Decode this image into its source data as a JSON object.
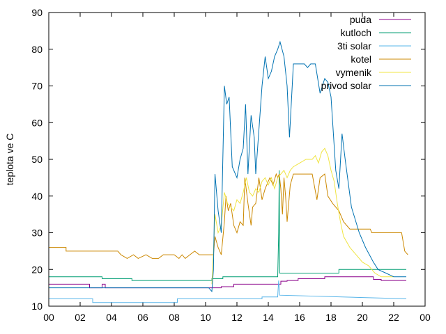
{
  "chart_data": {
    "type": "line",
    "ylabel": "teplota ve C",
    "xlabel": "",
    "xlim": [
      0,
      24
    ],
    "ylim": [
      10,
      90
    ],
    "x_ticks": [
      "00",
      "02",
      "04",
      "06",
      "08",
      "10",
      "12",
      "14",
      "16",
      "18",
      "20",
      "22",
      "00"
    ],
    "y_ticks": [
      "10",
      "20",
      "30",
      "40",
      "50",
      "60",
      "70",
      "80",
      "90"
    ],
    "legend_position": "top-right",
    "series": [
      {
        "name": "puda",
        "color": "#8b008b",
        "points": [
          [
            0,
            16
          ],
          [
            2.6,
            16
          ],
          [
            2.6,
            15
          ],
          [
            3.4,
            15
          ],
          [
            3.4,
            16
          ],
          [
            3.6,
            16
          ],
          [
            3.6,
            15
          ],
          [
            11,
            15
          ],
          [
            11,
            15.3
          ],
          [
            11.8,
            15.3
          ],
          [
            11.8,
            16
          ],
          [
            14.8,
            16
          ],
          [
            14.8,
            16.8
          ],
          [
            15.2,
            16.8
          ],
          [
            15.2,
            17
          ],
          [
            15.9,
            17
          ],
          [
            15.9,
            17.5
          ],
          [
            17.6,
            17.5
          ],
          [
            17.6,
            18
          ],
          [
            20.7,
            18
          ],
          [
            20.7,
            17.3
          ],
          [
            21.2,
            17.3
          ],
          [
            21.2,
            17
          ],
          [
            22.8,
            17
          ]
        ]
      },
      {
        "name": "kutloch",
        "color": "#009e73",
        "points": [
          [
            0,
            18
          ],
          [
            3.4,
            18
          ],
          [
            3.4,
            17.5
          ],
          [
            5.3,
            17.5
          ],
          [
            5.3,
            17
          ],
          [
            10.4,
            17
          ],
          [
            10.4,
            17.5
          ],
          [
            11.1,
            17.5
          ],
          [
            11.1,
            18
          ],
          [
            14.6,
            18
          ],
          [
            14.66,
            30
          ],
          [
            14.7,
            47
          ],
          [
            14.72,
            19
          ],
          [
            18.5,
            19
          ],
          [
            18.5,
            20
          ],
          [
            22.8,
            20
          ]
        ]
      },
      {
        "name": "3ti solar",
        "color": "#56b4e9",
        "points": [
          [
            0,
            12
          ],
          [
            2.8,
            12
          ],
          [
            2.8,
            11
          ],
          [
            8.2,
            11
          ],
          [
            8.2,
            12
          ],
          [
            13.6,
            12
          ],
          [
            13.6,
            12.5
          ],
          [
            14.6,
            12.5
          ],
          [
            14.62,
            14
          ],
          [
            14.66,
            17
          ],
          [
            14.72,
            13
          ],
          [
            22.8,
            12
          ]
        ]
      },
      {
        "name": "kotel",
        "color": "#cc8800",
        "points": [
          [
            0,
            26
          ],
          [
            1.1,
            26
          ],
          [
            1.1,
            25
          ],
          [
            4.4,
            25
          ],
          [
            4.6,
            24
          ],
          [
            5.0,
            23
          ],
          [
            5.4,
            24
          ],
          [
            5.7,
            23
          ],
          [
            6.2,
            24
          ],
          [
            6.6,
            23
          ],
          [
            7.0,
            23
          ],
          [
            7.3,
            24
          ],
          [
            8.0,
            24
          ],
          [
            8.3,
            23
          ],
          [
            8.5,
            24
          ],
          [
            8.7,
            23
          ],
          [
            9.0,
            24
          ],
          [
            9.3,
            25
          ],
          [
            9.6,
            24
          ],
          [
            10.5,
            24
          ],
          [
            10.6,
            29
          ],
          [
            10.8,
            26
          ],
          [
            11.0,
            24
          ],
          [
            11.2,
            33
          ],
          [
            11.3,
            40
          ],
          [
            11.45,
            36
          ],
          [
            11.6,
            38
          ],
          [
            11.8,
            32
          ],
          [
            12.0,
            30
          ],
          [
            12.2,
            33
          ],
          [
            12.4,
            32
          ],
          [
            12.5,
            45
          ],
          [
            12.7,
            38
          ],
          [
            12.9,
            32
          ],
          [
            13.0,
            37
          ],
          [
            13.2,
            38
          ],
          [
            13.4,
            45
          ],
          [
            13.6,
            39
          ],
          [
            13.8,
            42
          ],
          [
            14.0,
            44
          ],
          [
            14.1,
            45
          ],
          [
            14.3,
            43
          ],
          [
            14.5,
            46
          ],
          [
            14.6,
            45
          ],
          [
            14.7,
            46
          ],
          [
            14.8,
            42
          ],
          [
            14.9,
            35
          ],
          [
            15.0,
            45
          ],
          [
            15.1,
            40
          ],
          [
            15.2,
            33
          ],
          [
            15.4,
            43
          ],
          [
            15.6,
            46
          ],
          [
            16.8,
            46
          ],
          [
            17.1,
            39
          ],
          [
            17.3,
            45
          ],
          [
            17.6,
            46
          ],
          [
            17.8,
            40
          ],
          [
            18.1,
            38
          ],
          [
            18.5,
            36
          ],
          [
            18.8,
            33
          ],
          [
            19.2,
            31
          ],
          [
            20.0,
            31
          ],
          [
            20.5,
            31
          ],
          [
            20.6,
            30
          ],
          [
            22.5,
            30
          ],
          [
            22.7,
            25
          ],
          [
            22.9,
            24
          ]
        ]
      },
      {
        "name": "vymenik",
        "color": "#f0e442",
        "points": [
          [
            10.4,
            16
          ],
          [
            10.5,
            25
          ],
          [
            10.6,
            35
          ],
          [
            10.8,
            30
          ],
          [
            11.0,
            32
          ],
          [
            11.2,
            41
          ],
          [
            11.4,
            38
          ],
          [
            11.6,
            37
          ],
          [
            11.8,
            36
          ],
          [
            12.0,
            39
          ],
          [
            12.2,
            38
          ],
          [
            12.4,
            41
          ],
          [
            12.6,
            45
          ],
          [
            12.8,
            41
          ],
          [
            13.0,
            40
          ],
          [
            13.2,
            42
          ],
          [
            13.4,
            41
          ],
          [
            13.6,
            44
          ],
          [
            13.8,
            45
          ],
          [
            14.0,
            43
          ],
          [
            14.2,
            45
          ],
          [
            14.4,
            42
          ],
          [
            14.6,
            45
          ],
          [
            14.8,
            46
          ],
          [
            15.0,
            47
          ],
          [
            15.2,
            45
          ],
          [
            15.4,
            47
          ],
          [
            15.6,
            48
          ],
          [
            16.0,
            49
          ],
          [
            16.4,
            50
          ],
          [
            16.8,
            50
          ],
          [
            17.0,
            51
          ],
          [
            17.2,
            49
          ],
          [
            17.4,
            52
          ],
          [
            17.6,
            53
          ],
          [
            17.8,
            51
          ],
          [
            18.0,
            47
          ],
          [
            18.2,
            44
          ],
          [
            18.4,
            38
          ],
          [
            18.6,
            33
          ],
          [
            18.8,
            29
          ],
          [
            19.2,
            26
          ],
          [
            19.6,
            24
          ],
          [
            20.0,
            22
          ],
          [
            20.4,
            21
          ],
          [
            20.8,
            19
          ],
          [
            21.2,
            18
          ],
          [
            22.0,
            18
          ]
        ]
      },
      {
        "name": "privod solar",
        "color": "#0072b2",
        "points": [
          [
            0,
            15
          ],
          [
            10.2,
            15
          ],
          [
            10.4,
            14
          ],
          [
            10.5,
            20
          ],
          [
            10.6,
            46
          ],
          [
            10.8,
            36
          ],
          [
            11.0,
            30
          ],
          [
            11.2,
            70
          ],
          [
            11.35,
            65
          ],
          [
            11.5,
            67
          ],
          [
            11.7,
            48
          ],
          [
            12.0,
            45
          ],
          [
            12.2,
            50
          ],
          [
            12.4,
            53
          ],
          [
            12.55,
            65
          ],
          [
            12.7,
            46
          ],
          [
            12.9,
            62
          ],
          [
            13.1,
            56
          ],
          [
            13.2,
            46
          ],
          [
            13.4,
            58
          ],
          [
            13.6,
            70
          ],
          [
            13.8,
            78
          ],
          [
            14.0,
            72
          ],
          [
            14.2,
            74
          ],
          [
            14.4,
            78
          ],
          [
            14.6,
            80
          ],
          [
            14.75,
            82
          ],
          [
            15.0,
            78
          ],
          [
            15.2,
            70
          ],
          [
            15.35,
            56
          ],
          [
            15.6,
            76
          ],
          [
            15.8,
            76
          ],
          [
            16.3,
            76
          ],
          [
            16.5,
            75
          ],
          [
            16.7,
            76
          ],
          [
            17.0,
            76
          ],
          [
            17.3,
            68
          ],
          [
            17.6,
            72
          ],
          [
            17.8,
            71
          ],
          [
            18.0,
            67
          ],
          [
            18.3,
            47
          ],
          [
            18.5,
            42
          ],
          [
            18.7,
            57
          ],
          [
            18.9,
            50
          ],
          [
            19.3,
            37
          ],
          [
            19.8,
            30
          ],
          [
            20.2,
            26
          ],
          [
            20.7,
            22
          ],
          [
            21.0,
            20
          ],
          [
            21.5,
            19
          ],
          [
            22.0,
            18
          ],
          [
            22.8,
            18
          ]
        ]
      }
    ]
  }
}
